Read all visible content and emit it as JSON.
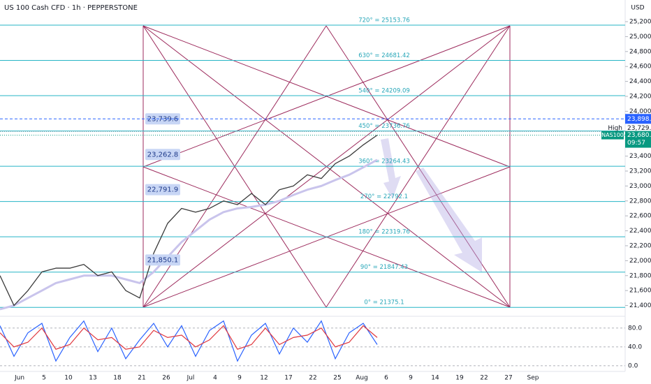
{
  "chart_data": {
    "type": "line",
    "title": "US 100 Cash CFD · 1h · PEPPERSTONE",
    "currency": "USD",
    "xtick_labels": [
      "Jun",
      "5",
      "10",
      "13",
      "18",
      "21",
      "26",
      "Jul",
      "4",
      "9",
      "12",
      "17",
      "22",
      "25",
      "Aug",
      "6",
      "9",
      "14",
      "19",
      "22",
      "27",
      "Sep"
    ],
    "ylim": [
      21265,
      25490
    ],
    "yticks": [
      {
        "value": 21400,
        "label": "21,400.0"
      },
      {
        "value": 21600,
        "label": "21,600.0"
      },
      {
        "value": 21800,
        "label": "21,800.0"
      },
      {
        "value": 22000,
        "label": "22,000.0"
      },
      {
        "value": 22200,
        "label": "22,200.0"
      },
      {
        "value": 22400,
        "label": "22,400.0"
      },
      {
        "value": 22600,
        "label": "22,600.0"
      },
      {
        "value": 22800,
        "label": "22,800.0"
      },
      {
        "value": 23000,
        "label": "23,000.0"
      },
      {
        "value": 23200,
        "label": "23,200.0"
      },
      {
        "value": 23400,
        "label": "23,400.0"
      },
      {
        "value": 24000,
        "label": "24,000.0"
      },
      {
        "value": 24200,
        "label": "24,200.0"
      },
      {
        "value": 24400,
        "label": "24,400.0"
      },
      {
        "value": 24600,
        "label": "24,600.0"
      },
      {
        "value": 24800,
        "label": "24,800.0"
      },
      {
        "value": 25000,
        "label": "25,000.0"
      },
      {
        "value": 25200,
        "label": "25,200.0"
      }
    ],
    "series": [
      {
        "color": "#3a3a3a",
        "values": [
          21800,
          21400,
          21600,
          21850,
          21900,
          21900,
          21950,
          21800,
          21850,
          21600,
          21500,
          22100,
          22500,
          22700,
          22650,
          22700,
          22800,
          22750,
          22900,
          22750,
          22950,
          23000,
          23150,
          23100,
          23300,
          23400,
          23550,
          23680
        ]
      },
      {
        "color": "#c9c4ec",
        "values": [
          21350,
          21400,
          21500,
          21600,
          21700,
          21750,
          21800,
          21800,
          21800,
          21750,
          21700,
          21850,
          22050,
          22250,
          22400,
          22550,
          22650,
          22700,
          22720,
          22750,
          22800,
          22880,
          22950,
          23000,
          23080,
          23150,
          23250,
          23350
        ]
      }
    ],
    "levels": [
      {
        "label": "720° = 25153.76",
        "value": 25153.76
      },
      {
        "label": "630° = 24681.42",
        "value": 24681.42
      },
      {
        "label": "540° = 24209.09",
        "value": 24209.09
      },
      {
        "label": "450° = 23736.76",
        "value": 23736.76
      },
      {
        "label": "360° = 23264.43",
        "value": 23264.43
      },
      {
        "label": "270° = 22792.1",
        "value": 22792.1
      },
      {
        "label": "180° = 22319.76",
        "value": 22319.76
      },
      {
        "label": "90° = 21847.43",
        "value": 21847.43
      },
      {
        "label": "0° = 21375.1",
        "value": 21375.1
      }
    ],
    "price_boxes": [
      {
        "label": "23,739.6",
        "value": 23739.6
      },
      {
        "label": "23,262.8",
        "value": 23262.8
      },
      {
        "label": "22,791.9",
        "value": 22791.9
      },
      {
        "label": "21,850.1",
        "value": 21850.1
      }
    ],
    "markers": {
      "line_price": {
        "value": 23898.5,
        "label": "23,898.5"
      },
      "high": {
        "text": "High",
        "value": 23729.5,
        "label": "23,729.5"
      },
      "last": {
        "symbol": "NAS100",
        "value": 23680.6,
        "label": "23,680.6",
        "countdown": "09:57"
      }
    },
    "oscillator": {
      "ylim": [
        -12,
        102
      ],
      "yticks": [
        {
          "value": 80,
          "label": "80.0"
        },
        {
          "value": 40,
          "label": "40.0"
        },
        {
          "value": 0,
          "label": "0.0"
        }
      ],
      "series": [
        {
          "color": "#2962ff",
          "values": [
            85,
            20,
            70,
            90,
            10,
            60,
            95,
            30,
            80,
            15,
            55,
            90,
            40,
            85,
            20,
            75,
            95,
            10,
            65,
            90,
            25,
            80,
            50,
            95,
            15,
            70,
            90,
            45
          ]
        },
        {
          "color": "#e0383e",
          "values": [
            70,
            40,
            50,
            80,
            35,
            45,
            80,
            55,
            60,
            35,
            40,
            75,
            60,
            65,
            40,
            55,
            85,
            35,
            45,
            80,
            45,
            60,
            65,
            80,
            40,
            50,
            85,
            60
          ]
        }
      ]
    }
  }
}
